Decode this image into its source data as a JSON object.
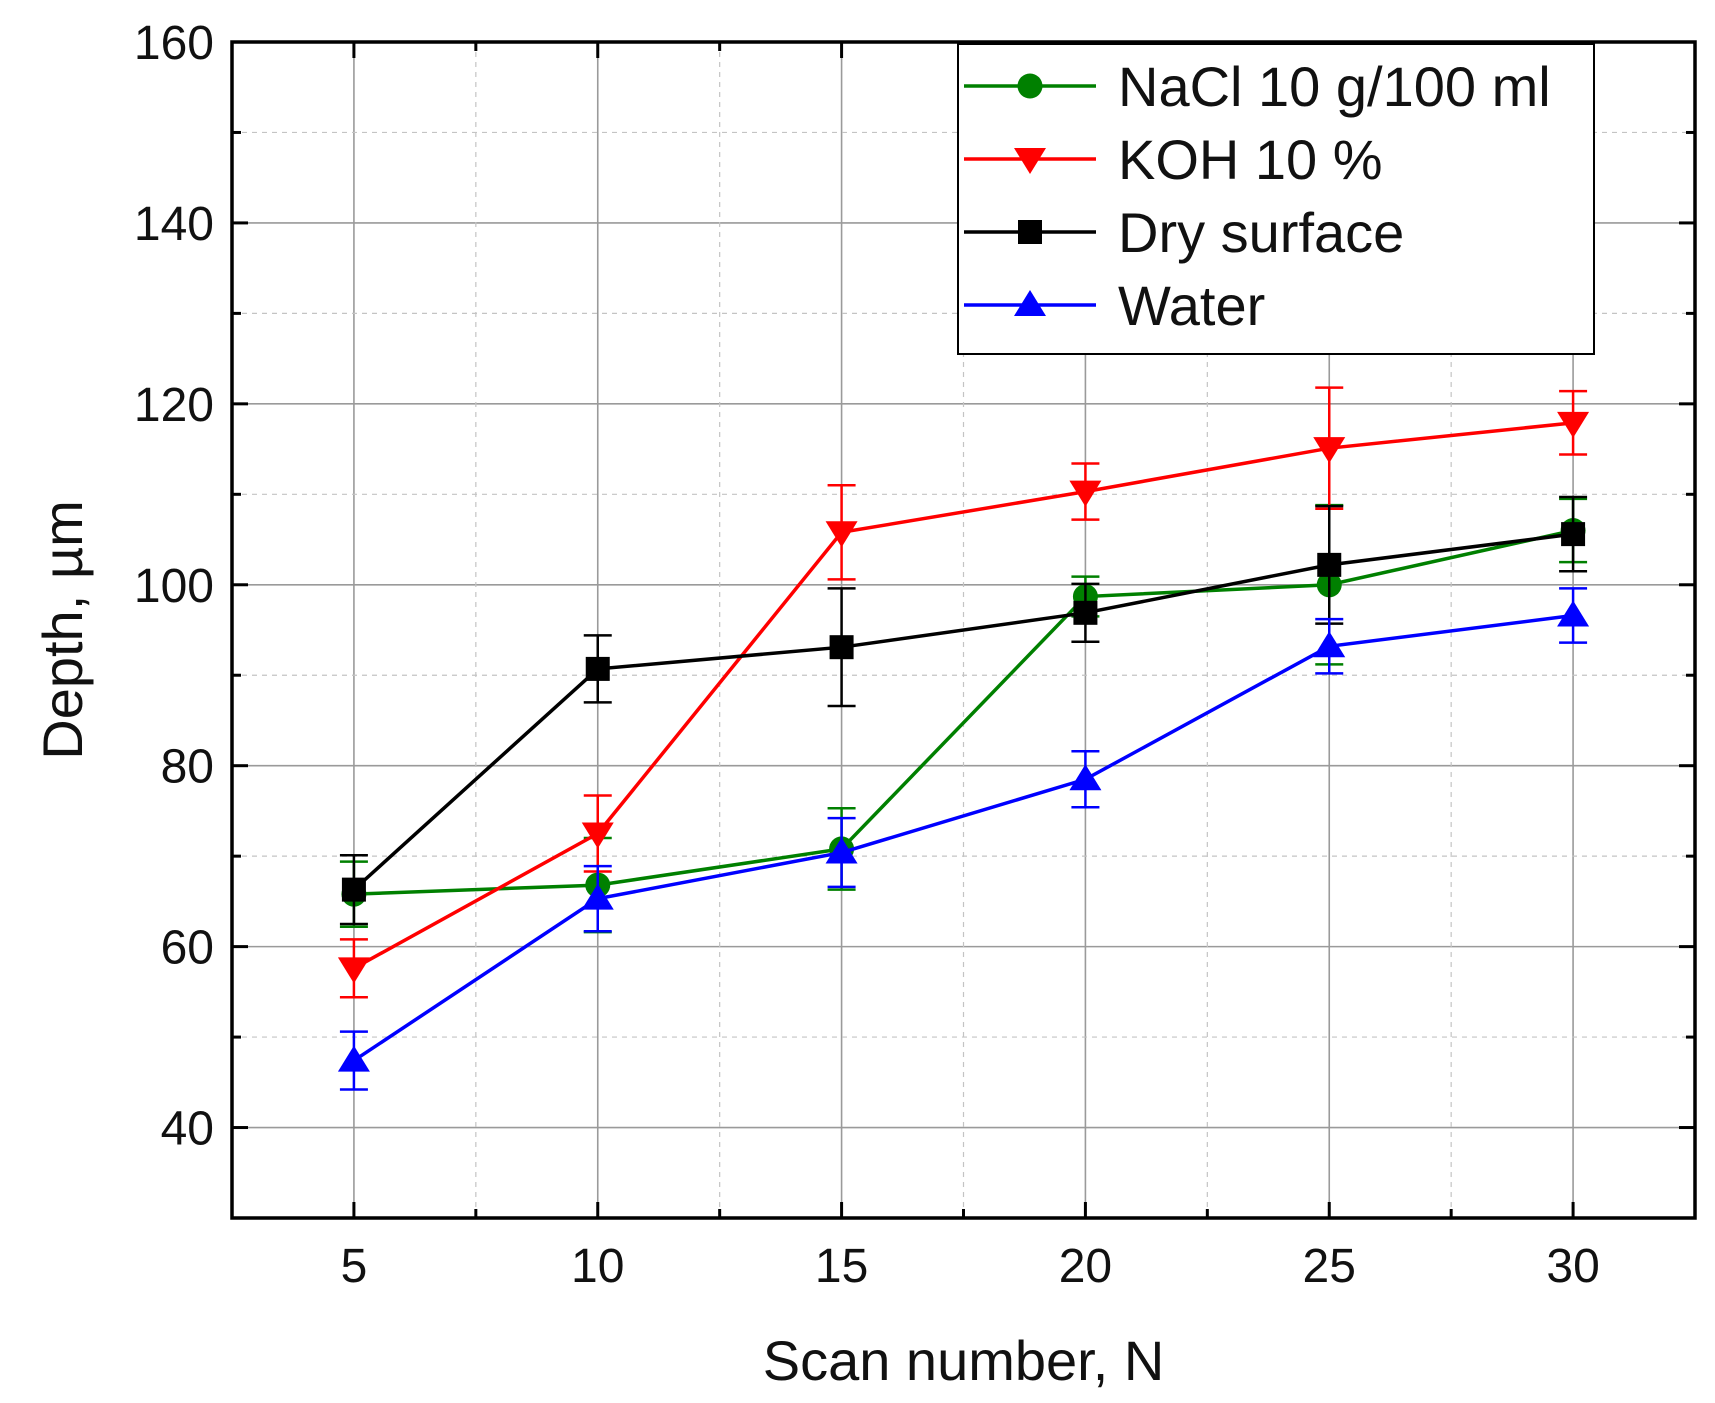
{
  "chart_data": {
    "type": "line",
    "title": "",
    "xlabel": "Scan number, N",
    "ylabel": "Depth, µm",
    "xlim": [
      2.5,
      32.5
    ],
    "ylim": [
      30,
      160
    ],
    "x_ticks": [
      5,
      10,
      15,
      20,
      25,
      30
    ],
    "y_ticks": [
      40,
      60,
      80,
      100,
      120,
      140,
      160
    ],
    "x_tick_labels": [
      "5",
      "10",
      "15",
      "20",
      "25",
      "30"
    ],
    "y_tick_labels": [
      "40",
      "60",
      "80",
      "100",
      "120",
      "140",
      "160"
    ],
    "x_minor_ticks": [
      7.5,
      12.5,
      17.5,
      22.5,
      27.5
    ],
    "y_minor_ticks": [
      50,
      70,
      90,
      110,
      130,
      150
    ],
    "grid": true,
    "legend_position": "top-right",
    "series": [
      {
        "name": "NaCl 10 g/100 ml",
        "color": "#008000",
        "marker": "circle",
        "x": [
          5,
          10,
          15,
          20,
          25,
          30
        ],
        "values": [
          65.8,
          66.8,
          70.8,
          98.7,
          100.0,
          106.0
        ],
        "errors": [
          3.6,
          5.2,
          4.5,
          2.2,
          8.8,
          3.5
        ]
      },
      {
        "name": "KOH 10 %",
        "color": "#ff0000",
        "marker": "triangle-down",
        "x": [
          5,
          10,
          15,
          20,
          25,
          30
        ],
        "values": [
          57.6,
          72.5,
          105.8,
          110.3,
          115.1,
          117.9
        ],
        "errors": [
          3.2,
          4.2,
          5.2,
          3.1,
          6.7,
          3.5
        ]
      },
      {
        "name": "Dry surface",
        "color": "#000000",
        "marker": "square",
        "x": [
          5,
          10,
          15,
          20,
          25,
          30
        ],
        "values": [
          66.3,
          90.7,
          93.1,
          96.9,
          102.2,
          105.6
        ],
        "errors": [
          3.8,
          3.7,
          6.5,
          3.2,
          6.5,
          4.1
        ]
      },
      {
        "name": "Water",
        "color": "#0000ff",
        "marker": "triangle-up",
        "x": [
          5,
          10,
          15,
          20,
          25,
          30
        ],
        "values": [
          47.4,
          65.3,
          70.4,
          78.5,
          93.2,
          96.6
        ],
        "errors": [
          3.2,
          3.6,
          3.8,
          3.1,
          3.0,
          3.0
        ]
      }
    ]
  }
}
